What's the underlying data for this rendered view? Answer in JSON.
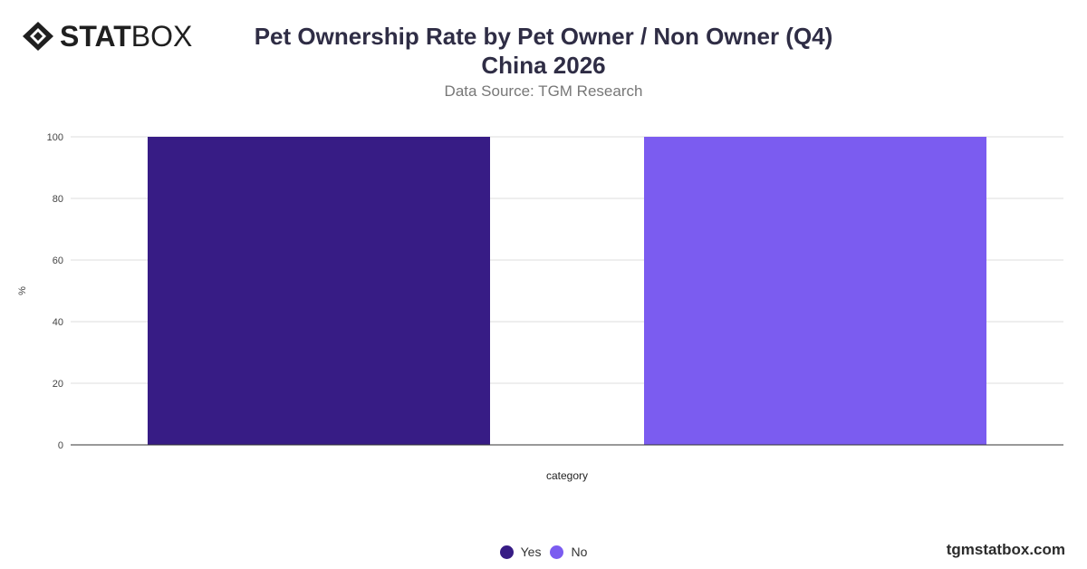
{
  "brand": {
    "logo_bold": "STAT",
    "logo_light": "BOX",
    "footer_url": "tgmstatbox.com"
  },
  "header": {
    "title_line1": "Pet Ownership Rate by Pet Owner / Non Owner (Q4)",
    "title_line2": "China 2026",
    "subtitle": "Data Source: TGM Research"
  },
  "chart_data": {
    "type": "bar",
    "title": "Pet Ownership Rate by Pet Owner / Non Owner (Q4) China 2026",
    "subtitle": "Data Source: TGM Research",
    "xlabel": "category",
    "ylabel": "%",
    "ylim": [
      0,
      100
    ],
    "yticks": [
      0,
      20,
      40,
      60,
      80,
      100
    ],
    "grid": true,
    "legend_position": "bottom",
    "series": [
      {
        "name": "Yes",
        "values": [
          100
        ],
        "color": "#371c85"
      },
      {
        "name": "No",
        "values": [
          100
        ],
        "color": "#7b5cf0"
      }
    ]
  }
}
